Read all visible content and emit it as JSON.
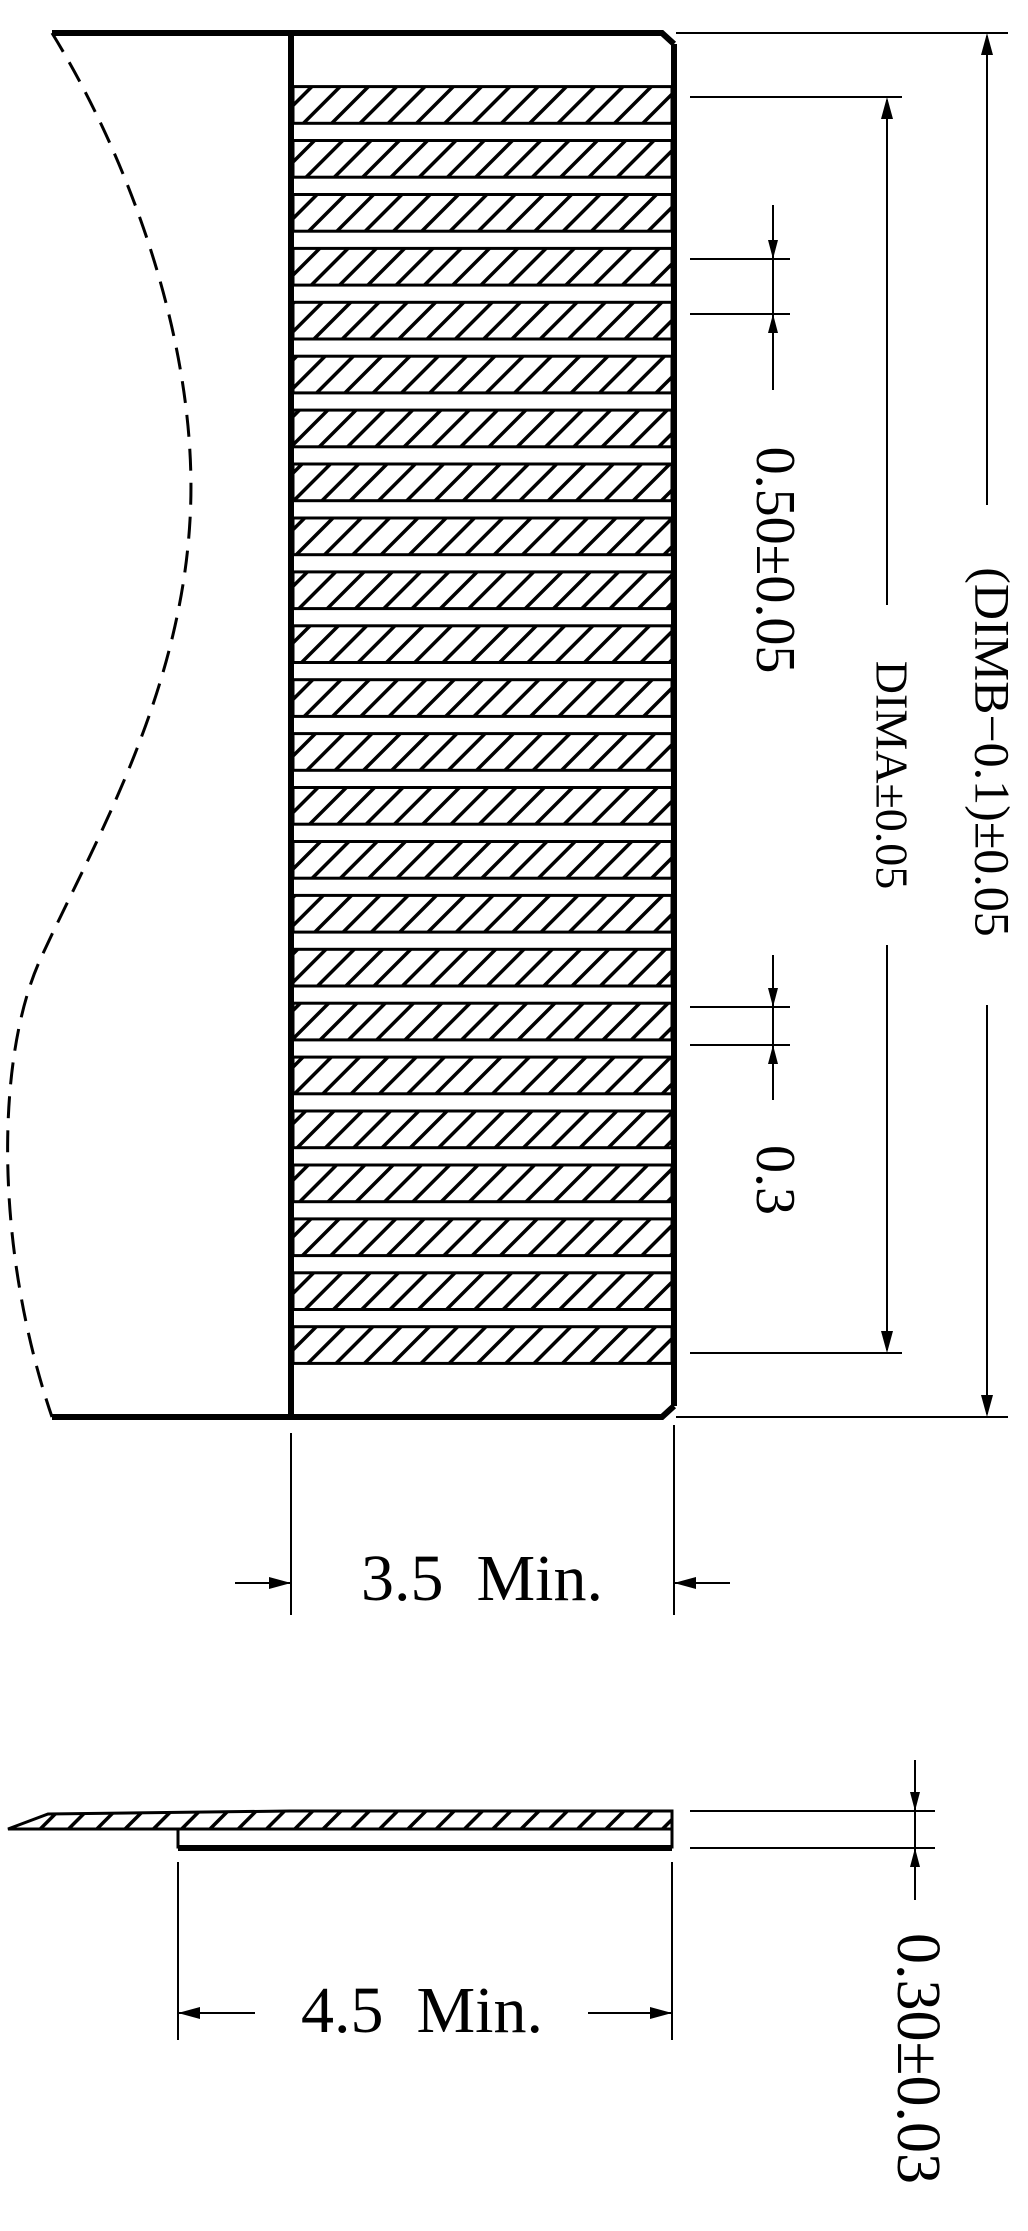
{
  "drawing": {
    "pin_pitch_label": "0.50±0.05",
    "contact_width_label": "0.3",
    "dim_a_label": "DIMA±0.05",
    "dim_b_label": "(DIMB−0.1)±0.05",
    "stiffener_length_label": "3.5  Min.",
    "exposed_length_label": "4.5  Min.",
    "thickness_label": "0.30±0.03",
    "contact_count": 24,
    "colors": {
      "line": "#000000",
      "background": "#ffffff"
    }
  }
}
